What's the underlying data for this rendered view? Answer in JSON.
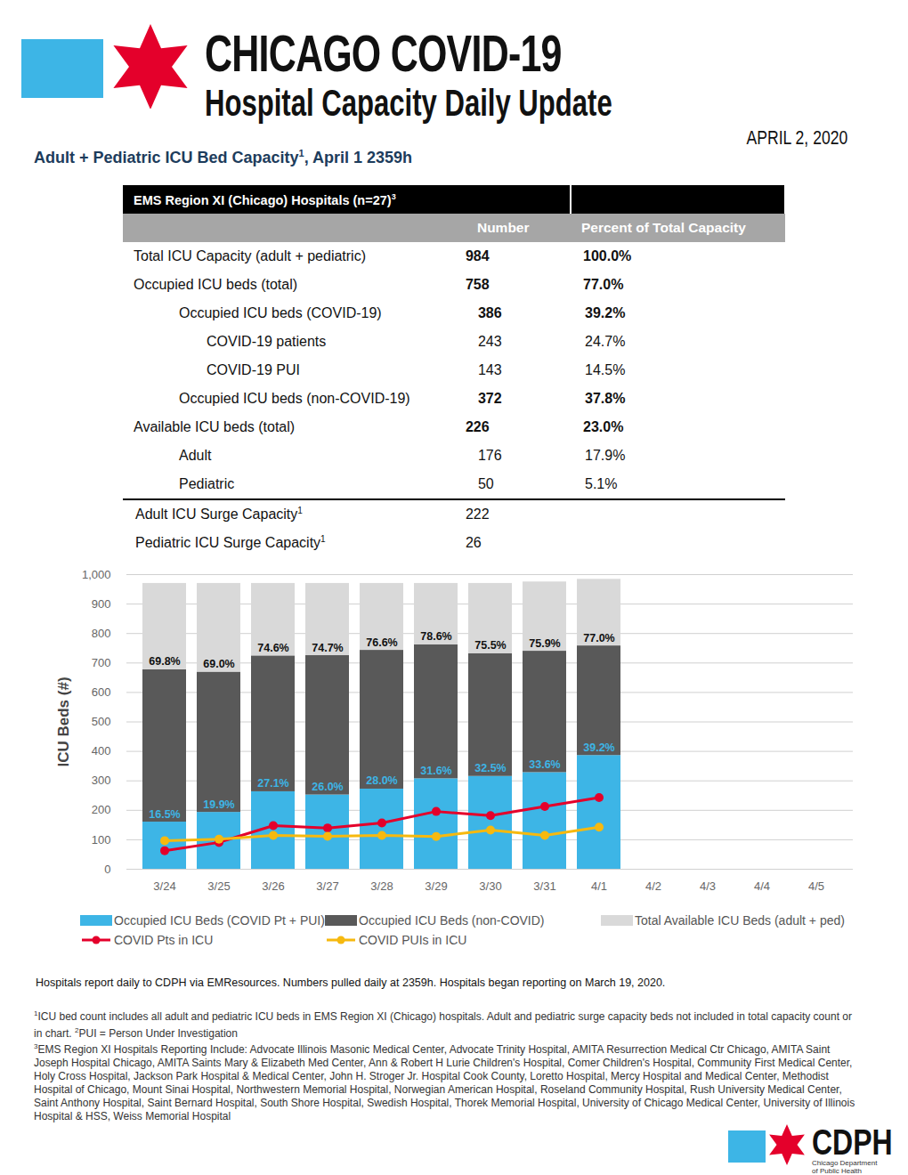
{
  "header": {
    "title": "CHICAGO COVID-19",
    "subtitle": "Hospital Capacity Daily Update",
    "date": "APRIL 2, 2020"
  },
  "section_title": {
    "text": "Adult + Pediatric ICU Bed Capacity",
    "note": "1",
    "suffix": ", April 1 2359h"
  },
  "table": {
    "header": {
      "text": "EMS Region XI (Chicago) Hospitals (n=27)",
      "note": "3"
    },
    "columns": [
      "Number",
      "Percent of Total Capacity"
    ],
    "rows": [
      {
        "label": "Total ICU Capacity (adult + pediatric)",
        "number": 984,
        "percent": "100.0%",
        "bold": true,
        "level": 0
      },
      {
        "label": "Occupied ICU beds (total)",
        "number": 758,
        "percent": "77.0%",
        "bold": true,
        "level": 0
      },
      {
        "label": "Occupied ICU beds (COVID-19)",
        "number": 386,
        "percent": "39.2%",
        "bold": true,
        "level": 1
      },
      {
        "label": "COVID-19 patients",
        "number": 243,
        "percent": "24.7%",
        "bold": false,
        "level": 2
      },
      {
        "label": "COVID-19 PUI",
        "number": 143,
        "percent": "14.5%",
        "bold": false,
        "level": 2
      },
      {
        "label": "Occupied ICU beds (non-COVID-19)",
        "number": 372,
        "percent": "37.8%",
        "bold": true,
        "level": 1
      },
      {
        "label": "Available ICU beds (total)",
        "number": 226,
        "percent": "23.0%",
        "bold": true,
        "level": 0
      },
      {
        "label": "Adult",
        "number": 176,
        "percent": "17.9%",
        "bold": false,
        "level": 1
      },
      {
        "label": "Pediatric",
        "number": 50,
        "percent": "5.1%",
        "bold": false,
        "level": 1
      }
    ],
    "surge_rows": [
      {
        "label": "Adult ICU Surge Capacity",
        "note": "1",
        "number": 222
      },
      {
        "label": "Pediatric ICU Surge Capacity",
        "note": "1",
        "number": 26
      }
    ]
  },
  "chart_data": {
    "type": "bar",
    "stacked": true,
    "y_label": "ICU Beds (#)",
    "categories": [
      "3/24",
      "3/25",
      "3/26",
      "3/27",
      "3/28",
      "3/29",
      "3/30",
      "3/31",
      "4/1",
      "4/2",
      "4/3",
      "4/4",
      "4/5"
    ],
    "series": [
      {
        "name": "Occupied ICU Beds (COVID Pt + PUI)",
        "type": "bar",
        "color": "#3db5e6",
        "values": [
          160,
          193,
          263,
          252,
          272,
          307,
          315,
          328,
          386,
          null,
          null,
          null,
          null
        ]
      },
      {
        "name": "Occupied ICU Beds (non-COVID)",
        "type": "bar",
        "color": "#595959",
        "values": [
          517,
          476,
          461,
          473,
          471,
          455,
          417,
          412,
          372,
          null,
          null,
          null,
          null
        ]
      },
      {
        "name": "Total Available ICU Beds (adult + ped)",
        "type": "bar",
        "color": "#d9d9d9",
        "values": [
          293,
          301,
          246,
          245,
          227,
          208,
          238,
          235,
          226,
          null,
          null,
          null,
          null
        ]
      },
      {
        "name": "COVID Pts in ICU",
        "type": "line",
        "marker": "circle",
        "color": "#e4002b",
        "values": [
          63,
          91,
          148,
          140,
          157,
          196,
          182,
          213,
          243,
          null,
          null,
          null,
          null
        ]
      },
      {
        "name": "COVID PUIs in ICU",
        "type": "line",
        "marker": "circle",
        "color": "#f6b90f",
        "values": [
          97,
          102,
          115,
          112,
          115,
          111,
          133,
          115,
          143,
          null,
          null,
          null,
          null
        ]
      }
    ],
    "annotations": {
      "occupied": [
        "69.8%",
        "69.0%",
        "74.6%",
        "74.7%",
        "76.6%",
        "78.6%",
        "75.5%",
        "75.9%",
        "77.0%",
        null,
        null,
        null,
        null
      ],
      "covid": [
        "16.5%",
        "19.9%",
        "27.1%",
        "26.0%",
        "28.0%",
        "31.6%",
        "32.5%",
        "33.6%",
        "39.2%",
        null,
        null,
        null,
        null
      ]
    },
    "ylim": [
      0,
      1000
    ],
    "yticks": [
      0,
      100,
      200,
      300,
      400,
      500,
      600,
      700,
      800,
      900,
      1000
    ],
    "grid": true
  },
  "footer": {
    "source": "Hospitals report daily to CDPH via EMResources. Numbers pulled daily at 2359h. Hospitals began reporting on March 19, 2020.",
    "notes": [
      {
        "marker": "1",
        "text": "ICU bed count includes all adult and pediatric ICU beds in EMS Region XI (Chicago) hospitals. Adult and pediatric surge capacity beds not included in total capacity count or in chart."
      },
      {
        "marker": "2",
        "text": "PUI = Person Under Investigation"
      },
      {
        "marker": "3",
        "text": "EMS Region XI Hospitals Reporting Include: Advocate Illinois Masonic Medical Center, Advocate Trinity Hospital, AMITA Resurrection Medical Ctr Chicago, AMITA Saint Joseph Hospital Chicago, AMITA Saints Mary & Elizabeth Med Center, Ann & Robert H Lurie Children's Hospital, Comer Children's Hospital, Community First Medical Center, Holy Cross Hospital, Jackson Park Hospital & Medical Center, John H. Stroger Jr. Hospital Cook County, Loretto Hospital, Mercy Hospital and Medical Center, Methodist Hospital of Chicago, Mount Sinai Hospital, Northwestern Memorial Hospital, Norwegian American Hospital, Roseland Community Hospital, Rush University Medical Center, Saint Anthony Hospital, Saint Bernard Hospital, South Shore Hospital, Swedish Hospital, Thorek Memorial Hospital, University of Chicago Medical Center, University of Illinois Hospital & HSS, Weiss Memorial Hospital"
      }
    ]
  },
  "logo": {
    "text": "CDPH",
    "subtext": [
      "Chicago Department",
      "of Public Health"
    ]
  }
}
